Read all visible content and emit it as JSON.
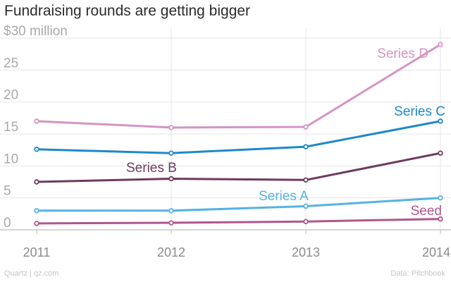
{
  "chart_data": {
    "type": "line",
    "title": "Fundraising rounds are getting bigger",
    "xlabel": "",
    "ylabel": "",
    "x": [
      2011,
      2012,
      2013,
      2014
    ],
    "x_tick_labels": [
      "2011",
      "2012",
      "2013",
      "2014"
    ],
    "y_ticks": [
      0,
      5,
      10,
      15,
      20,
      25,
      30
    ],
    "y_tick_labels": [
      "0",
      "5",
      "10",
      "15",
      "20",
      "25",
      "$30 million"
    ],
    "ylim": [
      0,
      30
    ],
    "grid": true,
    "legend": "inline labels",
    "series": [
      {
        "name": "Series D",
        "color": "#d494c4",
        "values": [
          17,
          16,
          16.1,
          29
        ]
      },
      {
        "name": "Series C",
        "color": "#1e88cc",
        "values": [
          12.6,
          12,
          13,
          17
        ]
      },
      {
        "name": "Series B",
        "color": "#6e3a5e",
        "values": [
          7.5,
          8,
          7.8,
          12
        ]
      },
      {
        "name": "Series A",
        "color": "#54b2e2",
        "values": [
          3,
          3,
          3.7,
          5
        ]
      },
      {
        "name": "Seed",
        "color": "#b0568e",
        "values": [
          1,
          1.1,
          1.3,
          1.7
        ]
      }
    ]
  },
  "footer": {
    "source_left": "Quartz | qz.com",
    "source_right": "Data: Pitchbook"
  }
}
